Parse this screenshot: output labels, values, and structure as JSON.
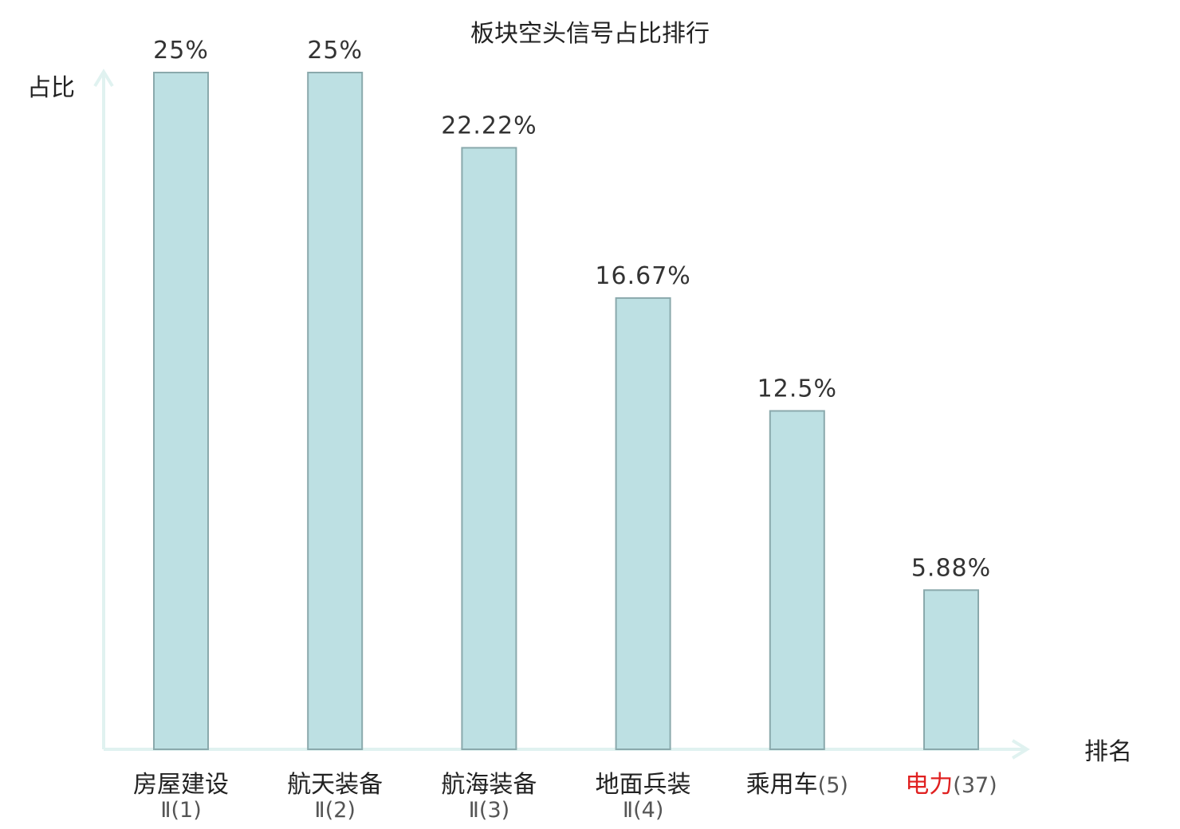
{
  "chart_data": {
    "type": "bar",
    "title": "板块空头信号占比排行",
    "ylabel": "占比",
    "xlabel": "排名",
    "ylim": [
      0,
      25
    ],
    "grid": false,
    "categories": [
      {
        "name": "房屋建设",
        "line2": "Ⅱ(1)",
        "suffix": ""
      },
      {
        "name": "航天装备",
        "line2": "Ⅱ(2)",
        "suffix": ""
      },
      {
        "name": "航海装备",
        "line2": "Ⅱ(3)",
        "suffix": ""
      },
      {
        "name": "地面兵装",
        "line2": "Ⅱ(4)",
        "suffix": ""
      },
      {
        "name": "乘用车",
        "line2": "",
        "suffix": "(5)"
      },
      {
        "name": "电力",
        "line2": "",
        "suffix": "(37)",
        "highlight": true
      }
    ],
    "values": [
      25,
      25,
      22.22,
      16.67,
      12.5,
      5.88
    ],
    "value_labels": [
      "25%",
      "25%",
      "22.22%",
      "16.67%",
      "12.5%",
      "5.88%"
    ],
    "colors": {
      "bar_fill": "#bde0e3",
      "bar_stroke": "#8aa9ac",
      "axis": "#e0f2f0",
      "highlight": "#e02020",
      "text": "#222222",
      "suffix_text": "#555555"
    }
  }
}
